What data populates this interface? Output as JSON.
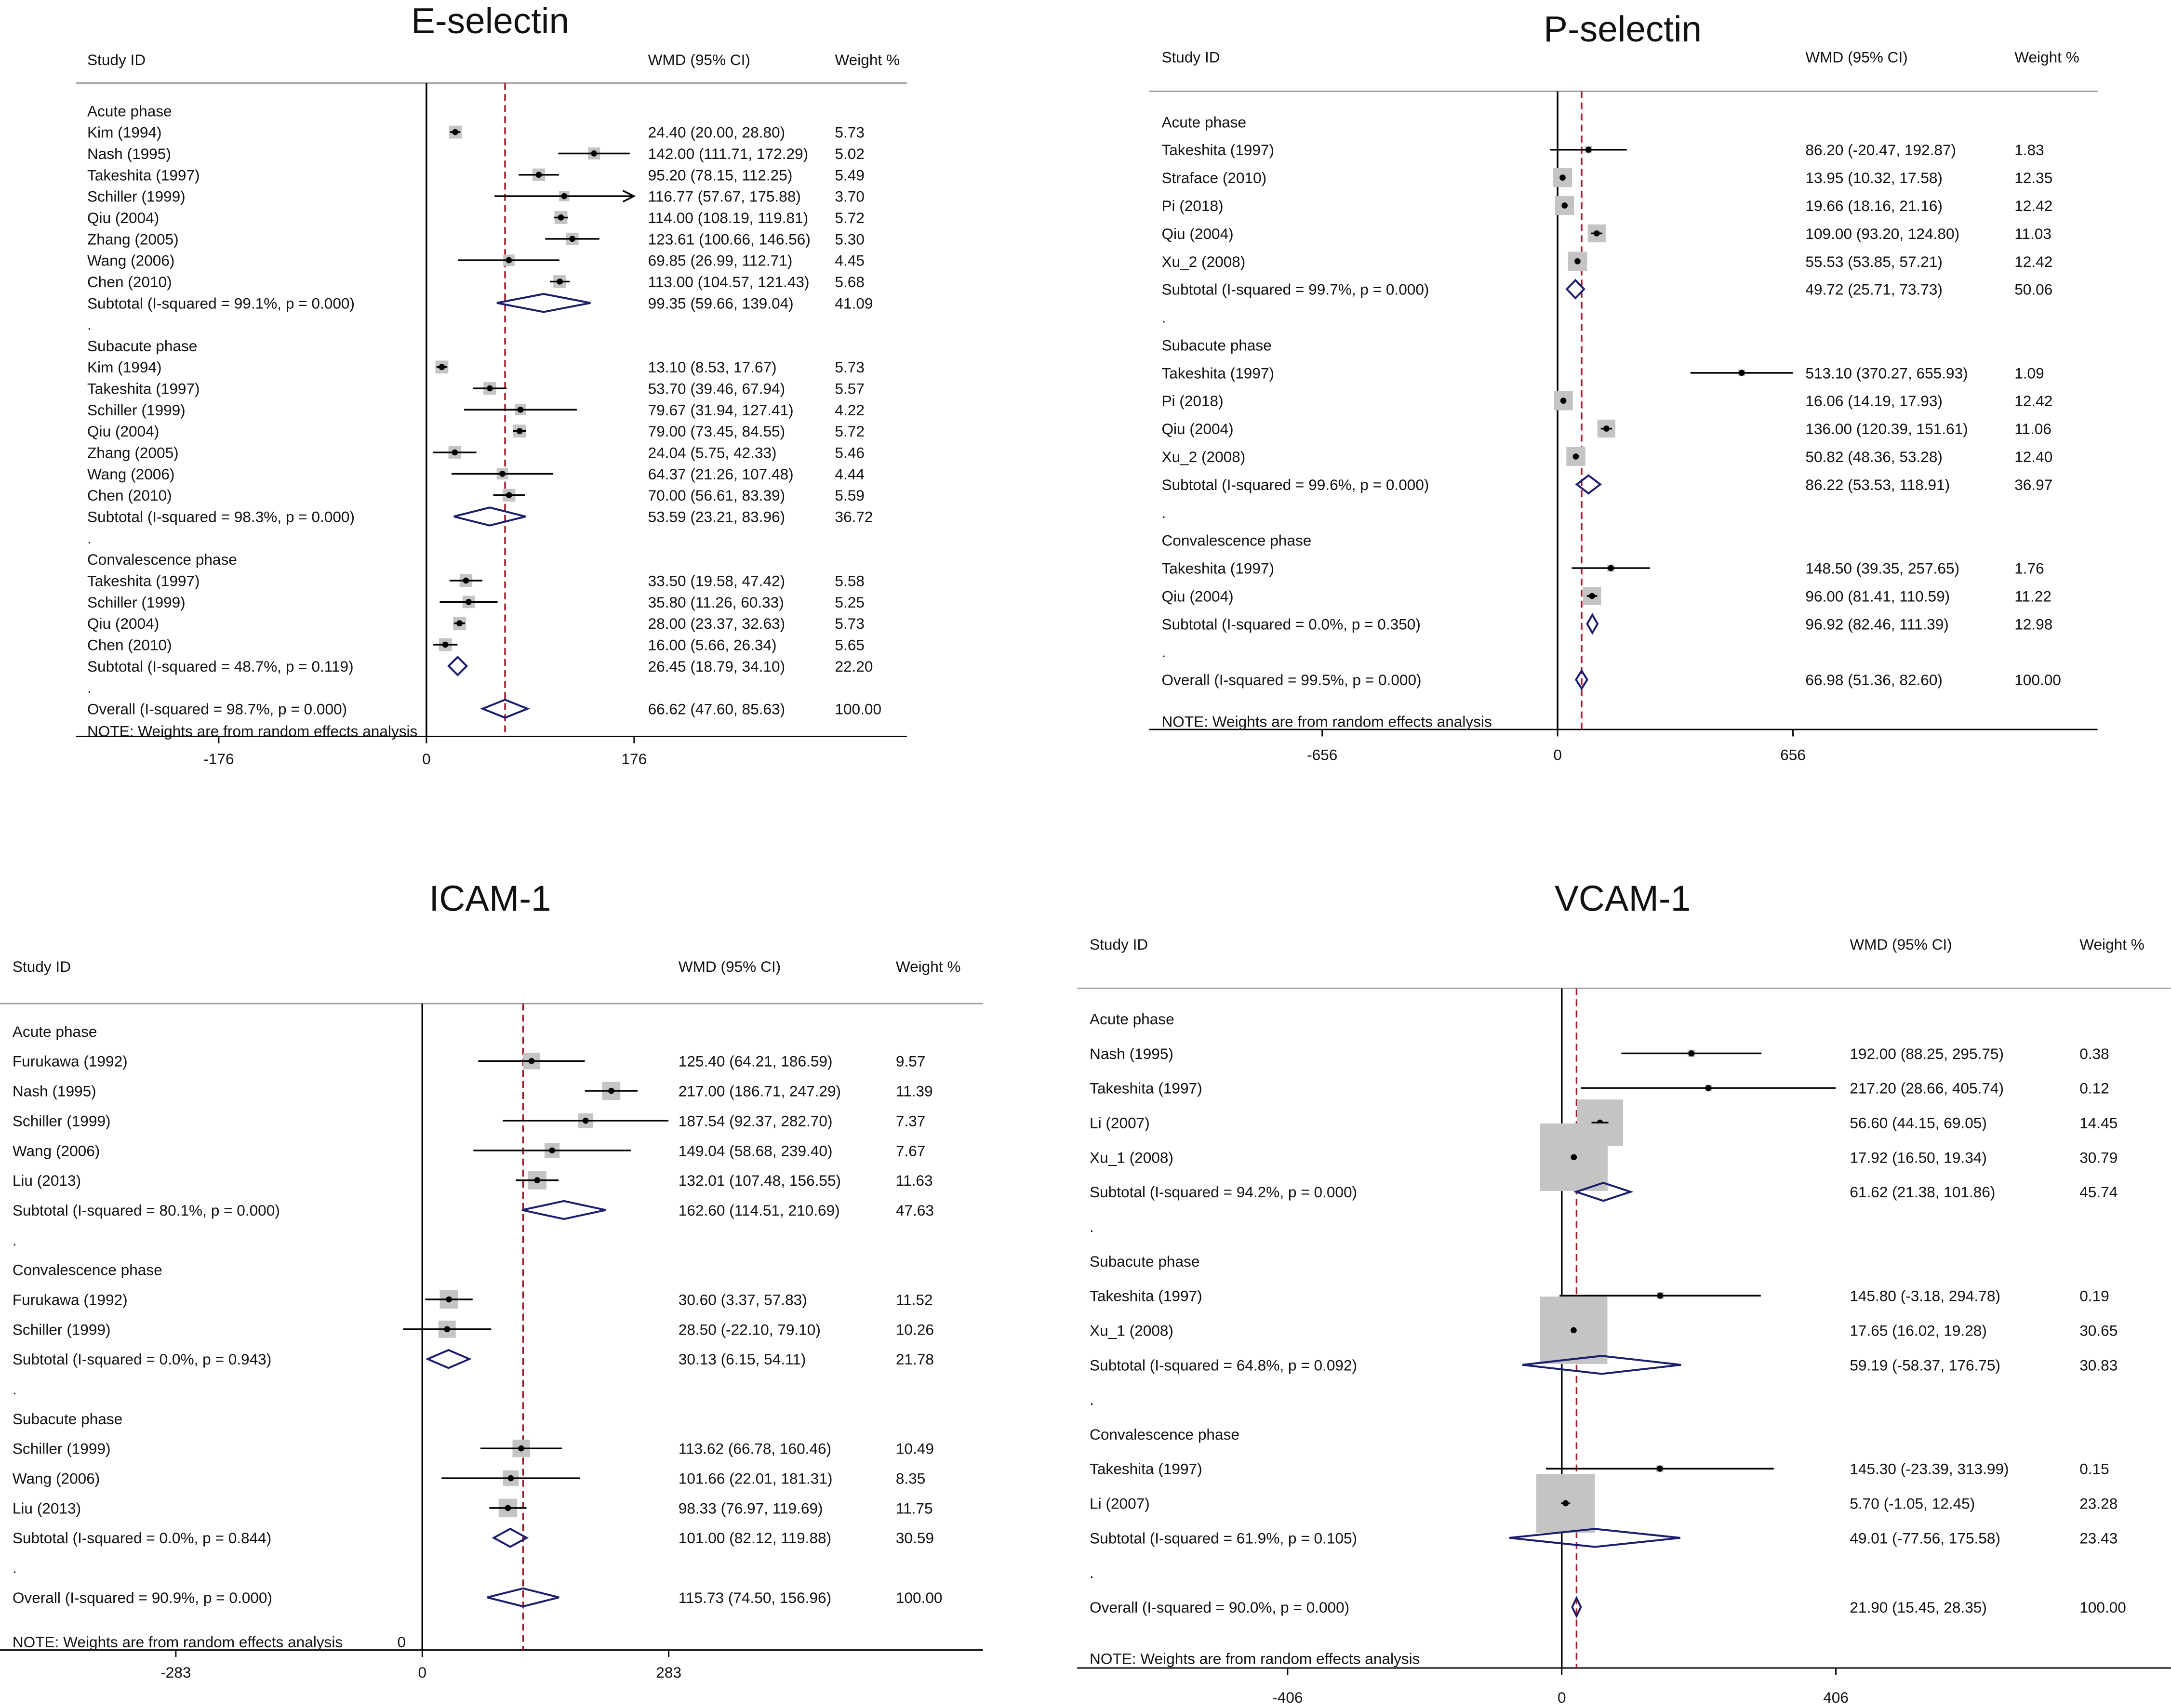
{
  "style": {
    "box_color": "#c4c4c4",
    "ci_color": "#000000",
    "diamond_color": "#1b1e6e",
    "ref_line_color": "#a01e2a",
    "rule_color": "#9b9b9b"
  },
  "chart_data": [
    {
      "type": "forest",
      "title": "E-selectin",
      "columns": [
        "Study ID",
        "WMD (95% CI)",
        "Weight %"
      ],
      "xlim": [
        -176,
        176
      ],
      "ticks": [
        -176,
        0,
        176
      ],
      "pooled_line": 66.62,
      "rows": [
        {
          "kind": "header",
          "label": "Acute phase"
        },
        {
          "kind": "study",
          "label": "Kim (1994)",
          "est": 24.4,
          "lo": 20.0,
          "hi": 28.8,
          "ci": "24.40 (20.00, 28.80)",
          "weight": "5.73"
        },
        {
          "kind": "study",
          "label": "Nash (1995)",
          "est": 142.0,
          "lo": 111.71,
          "hi": 172.29,
          "ci": "142.00 (111.71, 172.29)",
          "weight": "5.02"
        },
        {
          "kind": "study",
          "label": "Takeshita (1997)",
          "est": 95.2,
          "lo": 78.15,
          "hi": 112.25,
          "ci": "95.20 (78.15, 112.25)",
          "weight": "5.49"
        },
        {
          "kind": "study",
          "label": "Schiller (1999)",
          "est": 116.77,
          "lo": 57.67,
          "hi": 175.88,
          "ci": "116.77 (57.67, 175.88)",
          "weight": "3.70",
          "arrow": true
        },
        {
          "kind": "study",
          "label": "Qiu (2004)",
          "est": 114.0,
          "lo": 108.19,
          "hi": 119.81,
          "ci": "114.00 (108.19, 119.81)",
          "weight": "5.72"
        },
        {
          "kind": "study",
          "label": "Zhang (2005)",
          "est": 123.61,
          "lo": 100.66,
          "hi": 146.56,
          "ci": "123.61 (100.66, 146.56)",
          "weight": "5.30"
        },
        {
          "kind": "study",
          "label": "Wang (2006)",
          "est": 69.85,
          "lo": 26.99,
          "hi": 112.71,
          "ci": "69.85 (26.99, 112.71)",
          "weight": "4.45"
        },
        {
          "kind": "study",
          "label": "Chen (2010)",
          "est": 113.0,
          "lo": 104.57,
          "hi": 121.43,
          "ci": "113.00 (104.57, 121.43)",
          "weight": "5.68"
        },
        {
          "kind": "subtotal",
          "label": "Subtotal  (I-squared = 99.1%, p = 0.000)",
          "est": 99.35,
          "lo": 59.66,
          "hi": 139.04,
          "ci": "99.35 (59.66, 139.04)",
          "weight": "41.09"
        },
        {
          "kind": "dot",
          "label": "."
        },
        {
          "kind": "header",
          "label": "Subacute phase"
        },
        {
          "kind": "study",
          "label": "Kim (1994)",
          "est": 13.1,
          "lo": 8.53,
          "hi": 17.67,
          "ci": "13.10 (8.53, 17.67)",
          "weight": "5.73"
        },
        {
          "kind": "study",
          "label": "Takeshita (1997)",
          "est": 53.7,
          "lo": 39.46,
          "hi": 67.94,
          "ci": "53.70 (39.46, 67.94)",
          "weight": "5.57"
        },
        {
          "kind": "study",
          "label": "Schiller (1999)",
          "est": 79.67,
          "lo": 31.94,
          "hi": 127.41,
          "ci": "79.67 (31.94, 127.41)",
          "weight": "4.22"
        },
        {
          "kind": "study",
          "label": "Qiu (2004)",
          "est": 79.0,
          "lo": 73.45,
          "hi": 84.55,
          "ci": "79.00 (73.45, 84.55)",
          "weight": "5.72"
        },
        {
          "kind": "study",
          "label": "Zhang (2005)",
          "est": 24.04,
          "lo": 5.75,
          "hi": 42.33,
          "ci": "24.04 (5.75, 42.33)",
          "weight": "5.46"
        },
        {
          "kind": "study",
          "label": "Wang (2006)",
          "est": 64.37,
          "lo": 21.26,
          "hi": 107.48,
          "ci": "64.37 (21.26, 107.48)",
          "weight": "4.44"
        },
        {
          "kind": "study",
          "label": "Chen (2010)",
          "est": 70.0,
          "lo": 56.61,
          "hi": 83.39,
          "ci": "70.00 (56.61, 83.39)",
          "weight": "5.59"
        },
        {
          "kind": "subtotal",
          "label": "Subtotal  (I-squared = 98.3%, p = 0.000)",
          "est": 53.59,
          "lo": 23.21,
          "hi": 83.96,
          "ci": "53.59 (23.21, 83.96)",
          "weight": "36.72"
        },
        {
          "kind": "dot",
          "label": "."
        },
        {
          "kind": "header",
          "label": "Convalescence phase"
        },
        {
          "kind": "study",
          "label": "Takeshita (1997)",
          "est": 33.5,
          "lo": 19.58,
          "hi": 47.42,
          "ci": "33.50 (19.58, 47.42)",
          "weight": "5.58"
        },
        {
          "kind": "study",
          "label": "Schiller (1999)",
          "est": 35.8,
          "lo": 11.26,
          "hi": 60.33,
          "ci": "35.80 (11.26, 60.33)",
          "weight": "5.25"
        },
        {
          "kind": "study",
          "label": "Qiu (2004)",
          "est": 28.0,
          "lo": 23.37,
          "hi": 32.63,
          "ci": "28.00 (23.37, 32.63)",
          "weight": "5.73"
        },
        {
          "kind": "study",
          "label": "Chen (2010)",
          "est": 16.0,
          "lo": 5.66,
          "hi": 26.34,
          "ci": "16.00 (5.66, 26.34)",
          "weight": "5.65"
        },
        {
          "kind": "subtotal",
          "label": "Subtotal  (I-squared = 48.7%, p = 0.119)",
          "est": 26.45,
          "lo": 18.79,
          "hi": 34.1,
          "ci": "26.45 (18.79, 34.10)",
          "weight": "22.20"
        },
        {
          "kind": "dot",
          "label": "."
        },
        {
          "kind": "overall",
          "label": "Overall  (I-squared = 98.7%, p = 0.000)",
          "est": 66.62,
          "lo": 47.6,
          "hi": 85.63,
          "ci": "66.62 (47.60, 85.63)",
          "weight": "100.00"
        },
        {
          "kind": "note",
          "label": "NOTE: Weights are from random effects analysis"
        }
      ]
    },
    {
      "type": "forest",
      "title": "P-selectin",
      "columns": [
        "Study ID",
        "WMD (95% CI)",
        "Weight %"
      ],
      "xlim": [
        -656,
        656
      ],
      "ticks": [
        -656,
        0,
        656
      ],
      "pooled_line": 66.98,
      "rows": [
        {
          "kind": "header",
          "label": "Acute phase"
        },
        {
          "kind": "study",
          "label": "Takeshita (1997)",
          "est": 86.2,
          "lo": -20.47,
          "hi": 192.87,
          "ci": "86.20 (-20.47, 192.87)",
          "weight": "1.83"
        },
        {
          "kind": "study",
          "label": "Straface (2010)",
          "est": 13.95,
          "lo": 10.32,
          "hi": 17.58,
          "ci": "13.95 (10.32, 17.58)",
          "weight": "12.35"
        },
        {
          "kind": "study",
          "label": "Pi (2018)",
          "est": 19.66,
          "lo": 18.16,
          "hi": 21.16,
          "ci": "19.66 (18.16, 21.16)",
          "weight": "12.42"
        },
        {
          "kind": "study",
          "label": "Qiu (2004)",
          "est": 109.0,
          "lo": 93.2,
          "hi": 124.8,
          "ci": "109.00 (93.20, 124.80)",
          "weight": "11.03"
        },
        {
          "kind": "study",
          "label": "Xu_2 (2008)",
          "est": 55.53,
          "lo": 53.85,
          "hi": 57.21,
          "ci": "55.53 (53.85, 57.21)",
          "weight": "12.42"
        },
        {
          "kind": "subtotal",
          "label": "Subtotal  (I-squared = 99.7%, p = 0.000)",
          "est": 49.72,
          "lo": 25.71,
          "hi": 73.73,
          "ci": "49.72 (25.71, 73.73)",
          "weight": "50.06"
        },
        {
          "kind": "dot",
          "label": "."
        },
        {
          "kind": "header",
          "label": "Subacute phase"
        },
        {
          "kind": "study",
          "label": "Takeshita (1997)",
          "est": 513.1,
          "lo": 370.27,
          "hi": 655.93,
          "ci": "513.10 (370.27, 655.93)",
          "weight": "1.09"
        },
        {
          "kind": "study",
          "label": "Pi (2018)",
          "est": 16.06,
          "lo": 14.19,
          "hi": 17.93,
          "ci": "16.06 (14.19, 17.93)",
          "weight": "12.42"
        },
        {
          "kind": "study",
          "label": "Qiu (2004)",
          "est": 136.0,
          "lo": 120.39,
          "hi": 151.61,
          "ci": "136.00 (120.39, 151.61)",
          "weight": "11.06"
        },
        {
          "kind": "study",
          "label": "Xu_2 (2008)",
          "est": 50.82,
          "lo": 48.36,
          "hi": 53.28,
          "ci": "50.82 (48.36, 53.28)",
          "weight": "12.40"
        },
        {
          "kind": "subtotal",
          "label": "Subtotal  (I-squared = 99.6%, p = 0.000)",
          "est": 86.22,
          "lo": 53.53,
          "hi": 118.91,
          "ci": "86.22 (53.53, 118.91)",
          "weight": "36.97"
        },
        {
          "kind": "dot",
          "label": "."
        },
        {
          "kind": "header",
          "label": "Convalescence phase"
        },
        {
          "kind": "study",
          "label": "Takeshita (1997)",
          "est": 148.5,
          "lo": 39.35,
          "hi": 257.65,
          "ci": "148.50 (39.35, 257.65)",
          "weight": "1.76"
        },
        {
          "kind": "study",
          "label": "Qiu (2004)",
          "est": 96.0,
          "lo": 81.41,
          "hi": 110.59,
          "ci": "96.00 (81.41, 110.59)",
          "weight": "11.22"
        },
        {
          "kind": "subtotal",
          "label": "Subtotal  (I-squared = 0.0%, p = 0.350)",
          "est": 96.92,
          "lo": 82.46,
          "hi": 111.39,
          "ci": "96.92 (82.46, 111.39)",
          "weight": "12.98"
        },
        {
          "kind": "dot",
          "label": "."
        },
        {
          "kind": "overall",
          "label": "Overall  (I-squared = 99.5%, p = 0.000)",
          "est": 66.98,
          "lo": 51.36,
          "hi": 82.6,
          "ci": "66.98 (51.36, 82.60)",
          "weight": "100.00"
        },
        {
          "kind": "note",
          "label": "NOTE: Weights are from random effects analysis"
        }
      ]
    },
    {
      "type": "forest",
      "title": "ICAM-1",
      "columns": [
        "Study ID",
        "WMD (95% CI)",
        "Weight %"
      ],
      "xlim": [
        -283,
        283
      ],
      "ticks": [
        -283,
        0,
        283
      ],
      "pooled_line": 115.73,
      "rows": [
        {
          "kind": "header",
          "label": "Acute phase"
        },
        {
          "kind": "study",
          "label": "Furukawa (1992)",
          "est": 125.4,
          "lo": 64.21,
          "hi": 186.59,
          "ci": "125.40 (64.21, 186.59)",
          "weight": "9.57"
        },
        {
          "kind": "study",
          "label": "Nash (1995)",
          "est": 217.0,
          "lo": 186.71,
          "hi": 247.29,
          "ci": "217.00 (186.71, 247.29)",
          "weight": "11.39"
        },
        {
          "kind": "study",
          "label": "Schiller (1999)",
          "est": 187.54,
          "lo": 92.37,
          "hi": 282.7,
          "ci": "187.54 (92.37, 282.70)",
          "weight": "7.37"
        },
        {
          "kind": "study",
          "label": "Wang (2006)",
          "est": 149.04,
          "lo": 58.68,
          "hi": 239.4,
          "ci": "149.04 (58.68, 239.40)",
          "weight": "7.67"
        },
        {
          "kind": "study",
          "label": "Liu (2013)",
          "est": 132.01,
          "lo": 107.48,
          "hi": 156.55,
          "ci": "132.01 (107.48, 156.55)",
          "weight": "11.63"
        },
        {
          "kind": "subtotal",
          "label": "Subtotal  (I-squared = 80.1%, p = 0.000)",
          "est": 162.6,
          "lo": 114.51,
          "hi": 210.69,
          "ci": "162.60 (114.51, 210.69)",
          "weight": "47.63"
        },
        {
          "kind": "dot",
          "label": "."
        },
        {
          "kind": "header",
          "label": "Convalescence phase"
        },
        {
          "kind": "study",
          "label": "Furukawa (1992)",
          "est": 30.6,
          "lo": 3.37,
          "hi": 57.83,
          "ci": "30.60 (3.37, 57.83)",
          "weight": "11.52"
        },
        {
          "kind": "study",
          "label": "Schiller (1999)",
          "est": 28.5,
          "lo": -22.1,
          "hi": 79.1,
          "ci": "28.50 (-22.10, 79.10)",
          "weight": "10.26"
        },
        {
          "kind": "subtotal",
          "label": "Subtotal  (I-squared = 0.0%, p = 0.943)",
          "est": 30.13,
          "lo": 6.15,
          "hi": 54.11,
          "ci": "30.13 (6.15, 54.11)",
          "weight": "21.78"
        },
        {
          "kind": "dot",
          "label": "."
        },
        {
          "kind": "header",
          "label": "Subacute phase"
        },
        {
          "kind": "study",
          "label": "Schiller (1999)",
          "est": 113.62,
          "lo": 66.78,
          "hi": 160.46,
          "ci": "113.62 (66.78, 160.46)",
          "weight": "10.49"
        },
        {
          "kind": "study",
          "label": "Wang (2006)",
          "est": 101.66,
          "lo": 22.01,
          "hi": 181.31,
          "ci": "101.66 (22.01, 181.31)",
          "weight": "8.35"
        },
        {
          "kind": "study",
          "label": "Liu (2013)",
          "est": 98.33,
          "lo": 76.97,
          "hi": 119.69,
          "ci": "98.33 (76.97, 119.69)",
          "weight": "11.75"
        },
        {
          "kind": "subtotal",
          "label": "Subtotal  (I-squared = 0.0%, p = 0.844)",
          "est": 101.0,
          "lo": 82.12,
          "hi": 119.88,
          "ci": "101.00 (82.12, 119.88)",
          "weight": "30.59"
        },
        {
          "kind": "dot",
          "label": "."
        },
        {
          "kind": "overall",
          "label": "Overall  (I-squared = 90.9%, p = 0.000)",
          "est": 115.73,
          "lo": 74.5,
          "hi": 156.96,
          "ci": "115.73 (74.50, 156.96)",
          "weight": "100.00"
        },
        {
          "kind": "note",
          "label": "NOTE: Weights are from random effects analysis",
          "suffix": "0"
        }
      ]
    },
    {
      "type": "forest",
      "title": "VCAM-1",
      "columns": [
        "Study ID",
        "WMD (95% CI)",
        "Weight %"
      ],
      "xlim": [
        -406,
        406
      ],
      "ticks": [
        -406,
        0,
        406
      ],
      "pooled_line": 21.9,
      "rows": [
        {
          "kind": "header",
          "label": "Acute phase"
        },
        {
          "kind": "study",
          "label": "Nash (1995)",
          "est": 192.0,
          "lo": 88.25,
          "hi": 295.75,
          "ci": "192.00 (88.25, 295.75)",
          "weight": "0.38"
        },
        {
          "kind": "study",
          "label": "Takeshita (1997)",
          "est": 217.2,
          "lo": 28.66,
          "hi": 405.74,
          "ci": "217.20 (28.66, 405.74)",
          "weight": "0.12"
        },
        {
          "kind": "study",
          "label": "Li (2007)",
          "est": 56.6,
          "lo": 44.15,
          "hi": 69.05,
          "ci": "56.60 (44.15, 69.05)",
          "weight": "14.45"
        },
        {
          "kind": "study",
          "label": "Xu_1 (2008)",
          "est": 17.92,
          "lo": 16.5,
          "hi": 19.34,
          "ci": "17.92 (16.50, 19.34)",
          "weight": "30.79"
        },
        {
          "kind": "subtotal",
          "label": "Subtotal  (I-squared = 94.2%, p = 0.000)",
          "est": 61.62,
          "lo": 21.38,
          "hi": 101.86,
          "ci": "61.62 (21.38, 101.86)",
          "weight": "45.74"
        },
        {
          "kind": "dot",
          "label": "."
        },
        {
          "kind": "header",
          "label": "Subacute phase"
        },
        {
          "kind": "study",
          "label": "Takeshita (1997)",
          "est": 145.8,
          "lo": -3.18,
          "hi": 294.78,
          "ci": "145.80 (-3.18, 294.78)",
          "weight": "0.19"
        },
        {
          "kind": "study",
          "label": "Xu_1 (2008)",
          "est": 17.65,
          "lo": 16.02,
          "hi": 19.28,
          "ci": "17.65 (16.02, 19.28)",
          "weight": "30.65"
        },
        {
          "kind": "subtotal",
          "label": "Subtotal  (I-squared = 64.8%, p = 0.092)",
          "est": 59.19,
          "lo": -58.37,
          "hi": 176.75,
          "ci": "59.19 (-58.37, 176.75)",
          "weight": "30.83"
        },
        {
          "kind": "dot",
          "label": "."
        },
        {
          "kind": "header",
          "label": "Convalescence phase"
        },
        {
          "kind": "study",
          "label": "Takeshita (1997)",
          "est": 145.3,
          "lo": -23.39,
          "hi": 313.99,
          "ci": "145.30 (-23.39, 313.99)",
          "weight": "0.15"
        },
        {
          "kind": "study",
          "label": "Li (2007)",
          "est": 5.7,
          "lo": -1.05,
          "hi": 12.45,
          "ci": "5.70 (-1.05, 12.45)",
          "weight": "23.28"
        },
        {
          "kind": "subtotal",
          "label": "Subtotal  (I-squared = 61.9%, p = 0.105)",
          "est": 49.01,
          "lo": -77.56,
          "hi": 175.58,
          "ci": "49.01 (-77.56, 175.58)",
          "weight": "23.43"
        },
        {
          "kind": "dot",
          "label": "."
        },
        {
          "kind": "overall",
          "label": "Overall  (I-squared = 90.0%, p = 0.000)",
          "est": 21.9,
          "lo": 15.45,
          "hi": 28.35,
          "ci": "21.90 (15.45, 28.35)",
          "weight": "100.00"
        },
        {
          "kind": "note",
          "label": "NOTE: Weights are from random effects analysis"
        }
      ]
    }
  ]
}
